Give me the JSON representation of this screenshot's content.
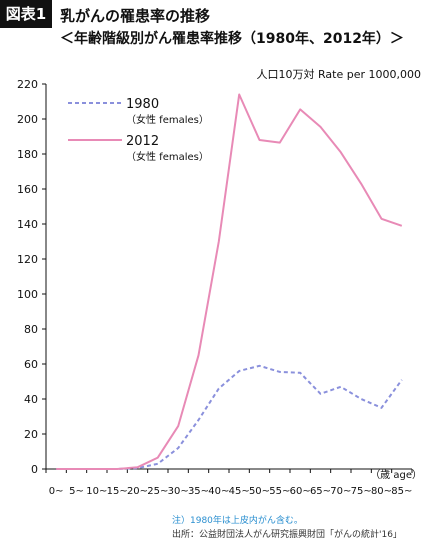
{
  "header": {
    "badge": "図表1",
    "title": "乳がんの罹患率の推移",
    "subtitle": "＜年齢階級別がん罹患率推移（1980年、2012年）＞"
  },
  "unit_label": "人口10万対 Rate per 1000,000",
  "notes": {
    "note": "注）1980年は上皮内がん含む。",
    "source": "出所：公益財団法人がん研究振興財団「がんの統計'16」"
  },
  "colors": {
    "s1980": "#8a90dc",
    "s2012": "#e88ab6"
  },
  "chart_data": {
    "type": "line",
    "title": "乳がんの罹患率の推移",
    "subtitle": "＜年齢階級別がん罹患率推移（1980年、2012年）＞",
    "ylabel": "人口10万対 Rate per 1000,000",
    "xlabel": "（歳 age）",
    "categories": [
      "0~",
      "5~",
      "10~",
      "15~",
      "20~",
      "25~",
      "30~",
      "35~",
      "40~",
      "45~",
      "50~",
      "55~",
      "60~",
      "65~",
      "70~",
      "75~",
      "80~",
      "85~"
    ],
    "ylim": [
      0,
      220
    ],
    "yticks": [
      0,
      20,
      40,
      60,
      80,
      100,
      120,
      140,
      160,
      180,
      200,
      220
    ],
    "grid": false,
    "legend_position": "top-left",
    "series": [
      {
        "name": "1980",
        "sub": "（女性 females）",
        "style": "dashed",
        "values": [
          0,
          0,
          0,
          0,
          0.5,
          3,
          12,
          28,
          46,
          56,
          59,
          55.5,
          55,
          43,
          47,
          40,
          35,
          51
        ]
      },
      {
        "name": "2012",
        "sub": "（女性 females）",
        "style": "solid",
        "values": [
          0,
          0,
          0,
          0,
          1,
          6.5,
          24.5,
          65,
          130,
          214,
          188,
          186.5,
          205.5,
          195.5,
          181,
          163,
          143,
          139
        ]
      }
    ]
  }
}
